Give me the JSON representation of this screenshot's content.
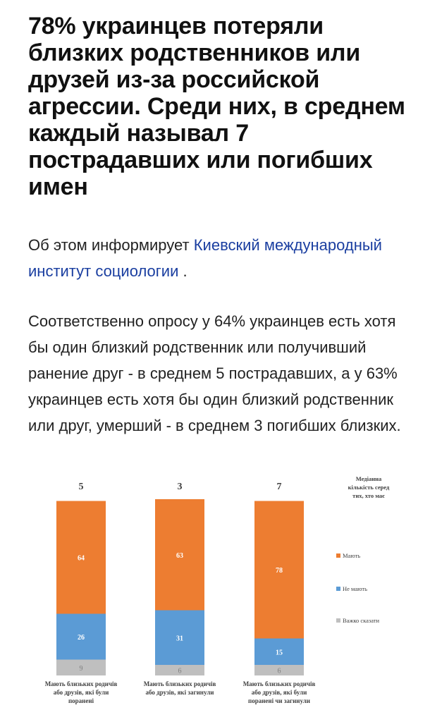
{
  "article": {
    "headline": "78% украинцев потеряли близких родственников или друзей из-за российской агрессии. Среди них, в среднем каждый называл 7 пострадавших или погибших имен",
    "intro_prefix": "Об этом информирует ",
    "intro_link": "Киевский международный институт социологии",
    "intro_suffix": " .",
    "body": "Соответственно опросу у 64% украинцев есть хотя бы один близкий родственник или получивший ранение друг - в среднем 5 пострадавших, а у 63% украинцев есть хотя бы один близкий родственник или друг, умерший - в среднем 3 погибших близких."
  },
  "chart_data": {
    "type": "bar",
    "stacked": true,
    "percent_scale": true,
    "categories": [
      "Мають близьких родичів або друзів, які були поранені",
      "Мають близьких родичів або друзів, які загинули",
      "Мають близьких родичів або друзів, які були поранені чи загинули"
    ],
    "category_lines": [
      [
        "Мають близьких родичів",
        "або друзів, які були",
        "поранені"
      ],
      [
        "Мають близьких родичів",
        "або друзів, які загинули"
      ],
      [
        "Мають близьких родичів",
        "або друзів, які були",
        "поранені чи загинули"
      ]
    ],
    "series": [
      {
        "name": "Мають",
        "values": [
          64,
          63,
          78
        ],
        "color": "#ed7d31"
      },
      {
        "name": "Не мають",
        "values": [
          26,
          31,
          15
        ],
        "color": "#5b9bd5"
      },
      {
        "name": "Важко сказати",
        "values": [
          9,
          6,
          6
        ],
        "color": "#bfbfbf"
      }
    ],
    "medians": [
      "5",
      "3",
      "7"
    ],
    "median_caption": [
      "Медіанна",
      "кількість серед",
      "тих, хто має"
    ],
    "legend_position": "right",
    "colors": {
      "label_on_bar": "#ffffff",
      "label_gray": "#7f7f7f",
      "text": "#404040"
    }
  }
}
